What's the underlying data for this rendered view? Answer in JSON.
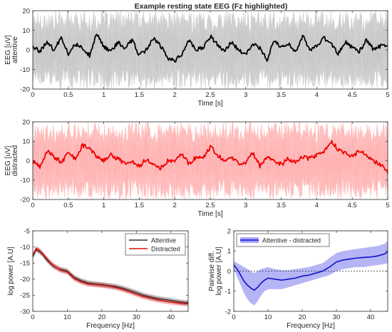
{
  "figure_title": "Example resting state EEG (Fz highlighted)",
  "colors": {
    "attentive_bg": "#c8c8c8",
    "attentive_fz": "#000000",
    "distracted_bg": "#ffb3b3",
    "distracted_fz": "#ee0000",
    "attentive_psd": "#333333",
    "distracted_psd": "#dd1111",
    "diff_line": "#1010cc",
    "diff_band": "#a8a8f4"
  },
  "chart_data": [
    {
      "type": "line",
      "id": "attentive",
      "xlabel": "Time [s]",
      "ylabel_lines": [
        "EEG [uV]",
        "attentive"
      ],
      "xlim": [
        0,
        5
      ],
      "ylim": [
        -20,
        20
      ],
      "xticks": [
        0,
        0.5,
        1,
        1.5,
        2,
        2.5,
        3,
        3.5,
        4,
        4.5,
        5
      ],
      "yticks": [
        -20,
        -10,
        0,
        10,
        20
      ],
      "series": [
        {
          "role": "Fz highlighted",
          "x": [
            0,
            0.1,
            0.2,
            0.3,
            0.4,
            0.5,
            0.6,
            0.7,
            0.8,
            0.9,
            1.0,
            1.1,
            1.2,
            1.3,
            1.4,
            1.5,
            1.6,
            1.7,
            1.8,
            1.9,
            2.0,
            2.1,
            2.2,
            2.3,
            2.4,
            2.5,
            2.6,
            2.7,
            2.8,
            2.9,
            3.0,
            3.1,
            3.2,
            3.3,
            3.4,
            3.5,
            3.6,
            3.7,
            3.8,
            3.9,
            4.0,
            4.1,
            4.2,
            4.3,
            4.4,
            4.5,
            4.6,
            4.7,
            4.8,
            4.9,
            5.0
          ],
          "y": [
            2,
            -1,
            4,
            0,
            6,
            -2,
            3,
            1,
            -3,
            9,
            2,
            -1,
            4,
            1,
            5,
            -3,
            0,
            6,
            2,
            -4,
            -6,
            -2,
            5,
            0,
            1,
            7,
            3,
            -1,
            4,
            0,
            -2,
            3,
            1,
            -5,
            5,
            1,
            3,
            -1,
            7,
            0,
            2,
            6,
            3,
            -2,
            4,
            1,
            -1,
            5,
            0,
            2,
            3
          ]
        },
        {
          "role": "all channels",
          "envelope": [
            -20,
            20
          ]
        }
      ]
    },
    {
      "type": "line",
      "id": "distracted",
      "xlabel": "Time [s]",
      "ylabel_lines": [
        "EEG [uV]",
        "distracted"
      ],
      "xlim": [
        0,
        5
      ],
      "ylim": [
        -20,
        20
      ],
      "xticks": [
        0,
        0.5,
        1,
        1.5,
        2,
        2.5,
        3,
        3.5,
        4,
        4.5,
        5
      ],
      "yticks": [
        -20,
        -10,
        0,
        10,
        20
      ],
      "series": [
        {
          "role": "Fz highlighted",
          "x": [
            0,
            0.1,
            0.2,
            0.3,
            0.4,
            0.5,
            0.6,
            0.7,
            0.8,
            0.9,
            1.0,
            1.1,
            1.2,
            1.3,
            1.4,
            1.5,
            1.6,
            1.7,
            1.8,
            1.9,
            2.0,
            2.1,
            2.2,
            2.3,
            2.4,
            2.5,
            2.6,
            2.7,
            2.8,
            2.9,
            3.0,
            3.1,
            3.2,
            3.3,
            3.4,
            3.5,
            3.6,
            3.7,
            3.8,
            3.9,
            4.0,
            4.1,
            4.2,
            4.3,
            4.4,
            4.5,
            4.6,
            4.7,
            4.8,
            4.9,
            5.0
          ],
          "y": [
            0,
            -3,
            5,
            2,
            -1,
            4,
            1,
            8,
            6,
            2,
            0,
            3,
            1,
            -2,
            0,
            -3,
            1,
            -2,
            -4,
            0,
            -1,
            4,
            -2,
            2,
            1,
            7,
            3,
            0,
            2,
            -2,
            -1,
            4,
            -3,
            2,
            0,
            -2,
            1,
            -1,
            2,
            1,
            3,
            5,
            10,
            6,
            4,
            2,
            5,
            3,
            0,
            -2,
            -6
          ]
        },
        {
          "role": "all channels",
          "envelope": [
            -20,
            20
          ]
        }
      ]
    },
    {
      "type": "line",
      "id": "psd",
      "xlabel": "Frequency [Hz]",
      "ylabel": "log power [A.U]",
      "xlim": [
        0,
        45
      ],
      "ylim": [
        -30,
        -5
      ],
      "xticks": [
        0,
        10,
        20,
        30,
        40
      ],
      "yticks": [
        -30,
        -25,
        -20,
        -15,
        -10,
        -5
      ],
      "legend": "top-right",
      "series": [
        {
          "name": "Attentive",
          "x": [
            0,
            1,
            2,
            3,
            4,
            5,
            6,
            7,
            8,
            9,
            10,
            12,
            14,
            16,
            18,
            20,
            22,
            24,
            26,
            28,
            30,
            32,
            34,
            36,
            38,
            40,
            42,
            44,
            45
          ],
          "y": [
            -13,
            -10.8,
            -11.5,
            -12.5,
            -14,
            -15,
            -16,
            -16.5,
            -17,
            -17.2,
            -17.5,
            -19.5,
            -20.5,
            -21.2,
            -21.5,
            -21.7,
            -22,
            -22.3,
            -22.8,
            -23.5,
            -24.2,
            -25,
            -25.5,
            -26,
            -26.3,
            -26.6,
            -27,
            -27.3,
            -27.3
          ]
        },
        {
          "name": "Distracted",
          "x": [
            0,
            1,
            2,
            3,
            4,
            5,
            6,
            7,
            8,
            9,
            10,
            12,
            14,
            16,
            18,
            20,
            22,
            24,
            26,
            28,
            30,
            32,
            34,
            36,
            38,
            40,
            42,
            44,
            45
          ],
          "y": [
            -12.5,
            -10.5,
            -11.2,
            -12.3,
            -13.5,
            -14.8,
            -15.8,
            -16.5,
            -17.2,
            -17.5,
            -17.8,
            -19.8,
            -20.8,
            -21.5,
            -21.7,
            -21.9,
            -22.2,
            -22.6,
            -23.2,
            -23.9,
            -24.7,
            -25.4,
            -25.9,
            -26.4,
            -26.8,
            -27.1,
            -27.4,
            -27.6,
            -27.6
          ]
        }
      ],
      "band_half_width": 0.8
    },
    {
      "type": "line",
      "id": "diff",
      "xlabel": "Frequency [Hz]",
      "ylabel_lines": [
        "Pairwise diff.",
        "log power [A.U]"
      ],
      "xlim": [
        0,
        45
      ],
      "ylim": [
        -2,
        2
      ],
      "xticks": [
        0,
        10,
        20,
        30,
        40
      ],
      "yticks": [
        -2,
        -1,
        0,
        1,
        2
      ],
      "legend": "top-left",
      "reference_line_y": 0,
      "series": [
        {
          "name": "Attentive - distracted",
          "x": [
            0,
            1,
            2,
            3,
            4,
            5,
            6,
            7,
            8,
            9,
            10,
            12,
            14,
            16,
            18,
            20,
            22,
            24,
            26,
            28,
            30,
            32,
            34,
            36,
            38,
            40,
            42,
            44,
            45
          ],
          "y": [
            0.3,
            0.1,
            -0.2,
            -0.5,
            -0.7,
            -0.85,
            -0.95,
            -0.8,
            -0.6,
            -0.45,
            -0.35,
            -0.4,
            -0.45,
            -0.4,
            -0.35,
            -0.25,
            -0.2,
            -0.1,
            0,
            0.2,
            0.45,
            0.55,
            0.6,
            0.65,
            0.68,
            0.7,
            0.75,
            0.85,
            0.95
          ],
          "lower": [
            0.1,
            -0.3,
            -0.7,
            -1.1,
            -1.4,
            -1.6,
            -1.7,
            -1.5,
            -1.2,
            -1.0,
            -0.9,
            -0.9,
            -0.9,
            -0.8,
            -0.7,
            -0.6,
            -0.5,
            -0.4,
            -0.3,
            -0.2,
            0,
            0.1,
            0.15,
            0.2,
            0.2,
            0.25,
            0.3,
            0.35,
            0.4
          ],
          "upper": [
            0.5,
            0.4,
            0.3,
            0.2,
            0.1,
            0,
            -0.1,
            0,
            0.1,
            0.15,
            0.2,
            0.1,
            0.05,
            0.05,
            0.1,
            0.15,
            0.2,
            0.3,
            0.4,
            0.65,
            0.9,
            1.0,
            1.05,
            1.1,
            1.15,
            1.2,
            1.25,
            1.35,
            1.5
          ]
        }
      ]
    }
  ]
}
